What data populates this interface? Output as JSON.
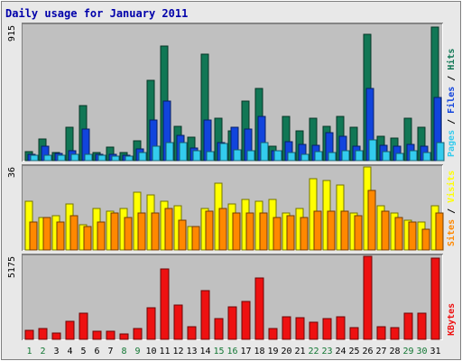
{
  "title": "Daily usage for January 2011",
  "colors": {
    "background": "#e8e8e8",
    "panel": "#c0c0c0",
    "title": "#0000aa",
    "pages": "#33ccee",
    "files": "#1144dd",
    "hits": "#117755",
    "sites": "#ff8800",
    "visits": "#ffff00",
    "kbytes": "#ee1111",
    "weekend_label": "#117733",
    "weekday_label": "#000000"
  },
  "chart_data": [
    {
      "type": "bar",
      "name": "hits_files_pages",
      "y_tick_label": "915",
      "ylim": [
        0,
        915
      ],
      "legend": [
        {
          "label": "Pages",
          "color": "#33ccee"
        },
        {
          "label": "Files",
          "color": "#1144dd"
        },
        {
          "label": "Hits",
          "color": "#117755"
        }
      ],
      "categories": [
        "1",
        "2",
        "3",
        "4",
        "5",
        "6",
        "7",
        "8",
        "9",
        "10",
        "11",
        "12",
        "13",
        "14",
        "15",
        "16",
        "17",
        "18",
        "19",
        "20",
        "21",
        "22",
        "23",
        "24",
        "25",
        "26",
        "27",
        "28",
        "29",
        "30",
        "31"
      ],
      "series": [
        {
          "name": "Hits",
          "values": [
            60,
            145,
            55,
            225,
            370,
            55,
            90,
            55,
            135,
            540,
            775,
            230,
            160,
            720,
            285,
            200,
            400,
            485,
            95,
            300,
            200,
            285,
            230,
            300,
            225,
            855,
            165,
            155,
            285,
            225,
            905
          ]
        },
        {
          "name": "Files",
          "values": [
            45,
            95,
            50,
            70,
            215,
            45,
            45,
            35,
            80,
            275,
            400,
            170,
            85,
            275,
            120,
            225,
            215,
            300,
            70,
            130,
            110,
            105,
            190,
            165,
            95,
            485,
            105,
            95,
            110,
            100,
            430
          ]
        },
        {
          "name": "Pages",
          "values": [
            35,
            35,
            35,
            45,
            45,
            35,
            30,
            30,
            55,
            100,
            125,
            120,
            70,
            60,
            115,
            75,
            65,
            125,
            70,
            55,
            45,
            60,
            55,
            65,
            70,
            140,
            60,
            50,
            65,
            55,
            120
          ]
        }
      ]
    },
    {
      "type": "bar",
      "name": "visits_sites",
      "y_tick_label": "36",
      "ylim": [
        0,
        36
      ],
      "legend": [
        {
          "label": "Sites",
          "color": "#ff8800"
        },
        {
          "label": "Visits",
          "color": "#ffff00"
        }
      ],
      "categories": [
        "1",
        "2",
        "3",
        "4",
        "5",
        "6",
        "7",
        "8",
        "9",
        "10",
        "11",
        "12",
        "13",
        "14",
        "15",
        "16",
        "17",
        "18",
        "19",
        "20",
        "21",
        "22",
        "23",
        "24",
        "25",
        "26",
        "27",
        "28",
        "29",
        "30",
        "31"
      ],
      "series": [
        {
          "name": "Visits",
          "values": [
            21,
            14,
            15,
            20,
            11,
            18,
            17,
            18,
            25,
            24,
            21,
            19,
            10,
            18,
            29,
            20,
            22,
            21,
            22,
            16,
            18,
            31,
            30,
            28,
            16,
            36,
            19,
            16,
            13,
            12,
            19
          ]
        },
        {
          "name": "Sites",
          "values": [
            12,
            14,
            12,
            15,
            10,
            12,
            16,
            14,
            16,
            16,
            18,
            13,
            10,
            17,
            18,
            16,
            16,
            16,
            14,
            15,
            14,
            17,
            17,
            17,
            15,
            26,
            17,
            14,
            12,
            9,
            16
          ]
        }
      ]
    },
    {
      "type": "bar",
      "name": "kbytes",
      "y_tick_label": "5175",
      "ylim": [
        0,
        5175
      ],
      "legend": [
        {
          "label": "KBytes",
          "color": "#ee1111"
        }
      ],
      "categories": [
        "1",
        "2",
        "3",
        "4",
        "5",
        "6",
        "7",
        "8",
        "9",
        "10",
        "11",
        "12",
        "13",
        "14",
        "15",
        "16",
        "17",
        "18",
        "19",
        "20",
        "21",
        "22",
        "23",
        "24",
        "25",
        "26",
        "27",
        "28",
        "29",
        "30",
        "31"
      ],
      "series": [
        {
          "name": "KBytes",
          "values": [
            550,
            700,
            400,
            1100,
            1650,
            500,
            500,
            350,
            700,
            1950,
            4400,
            2150,
            800,
            3050,
            1300,
            2050,
            2350,
            3850,
            650,
            1400,
            1350,
            1050,
            1300,
            1400,
            750,
            5150,
            800,
            750,
            1650,
            1650,
            5050
          ]
        }
      ]
    }
  ]
}
